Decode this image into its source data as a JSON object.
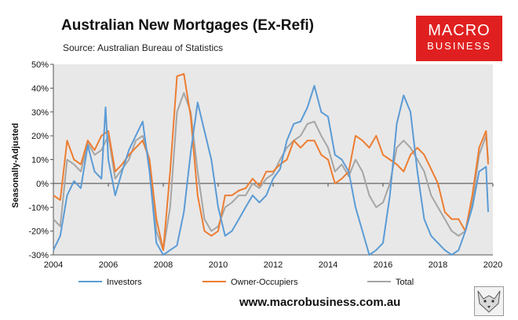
{
  "title": "Australian New Mortgages (Ex-Refi)",
  "subtitle": "Source: Australian Bureau of Statistics",
  "logo": {
    "line1": "MACRO",
    "line2": "BUSINESS"
  },
  "website": "www.macrobusiness.com.au",
  "colors": {
    "investors": "#5b9bd5",
    "owner_occupiers": "#ed7d31",
    "total": "#a5a5a5",
    "logo_bg": "#e02020",
    "plot_bg": "#e8e8e8"
  },
  "chart_data": {
    "type": "line",
    "xlabel": "",
    "ylabel": "Seasonally-Adjusted",
    "xlim": [
      2004,
      2020
    ],
    "ylim": [
      -30,
      50
    ],
    "x_ticks": [
      "2004",
      "2006",
      "2008",
      "2010",
      "2012",
      "2014",
      "2016",
      "2018",
      "2020"
    ],
    "y_ticks": [
      "-30%",
      "-20%",
      "-10%",
      "0%",
      "10%",
      "20%",
      "30%",
      "40%",
      "50%"
    ],
    "grid": false,
    "legend": "bottom",
    "series": [
      {
        "name": "Investors",
        "x": [
          2004.0,
          2004.25,
          2004.5,
          2004.75,
          2005.0,
          2005.25,
          2005.5,
          2005.75,
          2005.9,
          2006.0,
          2006.25,
          2006.5,
          2006.75,
          2007.0,
          2007.25,
          2007.5,
          2007.75,
          2008.0,
          2008.25,
          2008.5,
          2008.75,
          2009.0,
          2009.25,
          2009.5,
          2009.75,
          2010.0,
          2010.25,
          2010.5,
          2010.75,
          2011.0,
          2011.25,
          2011.5,
          2011.75,
          2012.0,
          2012.25,
          2012.5,
          2012.75,
          2013.0,
          2013.25,
          2013.5,
          2013.75,
          2014.0,
          2014.25,
          2014.5,
          2014.75,
          2015.0,
          2015.25,
          2015.5,
          2015.75,
          2016.0,
          2016.25,
          2016.5,
          2016.75,
          2017.0,
          2017.25,
          2017.5,
          2017.75,
          2018.0,
          2018.25,
          2018.5,
          2018.75,
          2019.0,
          2019.25,
          2019.5,
          2019.75,
          2019.83
        ],
        "y": [
          -28,
          -22,
          -5,
          1,
          -2,
          16,
          5,
          2,
          32,
          10,
          -5,
          5,
          14,
          20,
          26,
          5,
          -25,
          -30,
          -28,
          -26,
          -12,
          13,
          34,
          22,
          10,
          -10,
          -22,
          -20,
          -15,
          -10,
          -5,
          -8,
          -5,
          2,
          6,
          18,
          25,
          26,
          32,
          41,
          30,
          28,
          12,
          10,
          5,
          -10,
          -20,
          -30,
          -28,
          -25,
          -5,
          25,
          37,
          30,
          5,
          -15,
          -22,
          -25,
          -28,
          -30,
          -28,
          -20,
          -10,
          5,
          7,
          -12
        ]
      },
      {
        "name": "Owner-Occupiers",
        "x": [
          2004.0,
          2004.25,
          2004.5,
          2004.75,
          2005.0,
          2005.25,
          2005.5,
          2005.75,
          2006.0,
          2006.25,
          2006.5,
          2006.75,
          2007.0,
          2007.25,
          2007.5,
          2007.75,
          2008.0,
          2008.25,
          2008.5,
          2008.75,
          2009.0,
          2009.25,
          2009.5,
          2009.75,
          2010.0,
          2010.25,
          2010.5,
          2010.75,
          2011.0,
          2011.25,
          2011.5,
          2011.75,
          2012.0,
          2012.25,
          2012.5,
          2012.75,
          2013.0,
          2013.25,
          2013.5,
          2013.75,
          2014.0,
          2014.25,
          2014.5,
          2014.75,
          2015.0,
          2015.25,
          2015.5,
          2015.75,
          2016.0,
          2016.25,
          2016.5,
          2016.75,
          2017.0,
          2017.25,
          2017.5,
          2017.75,
          2018.0,
          2018.25,
          2018.5,
          2018.75,
          2019.0,
          2019.25,
          2019.5,
          2019.75,
          2019.83
        ],
        "y": [
          -5,
          -7,
          18,
          10,
          8,
          18,
          14,
          20,
          22,
          5,
          8,
          12,
          15,
          18,
          10,
          -15,
          -28,
          5,
          45,
          46,
          28,
          -5,
          -20,
          -22,
          -20,
          -5,
          -5,
          -3,
          -2,
          2,
          -1,
          5,
          5,
          8,
          10,
          18,
          15,
          18,
          18,
          12,
          10,
          0,
          2,
          5,
          20,
          18,
          15,
          20,
          12,
          10,
          8,
          5,
          12,
          15,
          12,
          6,
          0,
          -12,
          -15,
          -15,
          -20,
          -5,
          15,
          22,
          8
        ]
      },
      {
        "name": "Total",
        "x": [
          2004.0,
          2004.25,
          2004.5,
          2004.75,
          2005.0,
          2005.25,
          2005.5,
          2005.75,
          2006.0,
          2006.25,
          2006.5,
          2006.75,
          2007.0,
          2007.25,
          2007.5,
          2007.75,
          2008.0,
          2008.25,
          2008.5,
          2008.75,
          2009.0,
          2009.25,
          2009.5,
          2009.75,
          2010.0,
          2010.25,
          2010.5,
          2010.75,
          2011.0,
          2011.25,
          2011.5,
          2011.75,
          2012.0,
          2012.25,
          2012.5,
          2012.75,
          2013.0,
          2013.25,
          2013.5,
          2013.75,
          2014.0,
          2014.25,
          2014.5,
          2014.75,
          2015.0,
          2015.25,
          2015.5,
          2015.75,
          2016.0,
          2016.25,
          2016.5,
          2016.75,
          2017.0,
          2017.25,
          2017.5,
          2017.75,
          2018.0,
          2018.25,
          2018.5,
          2018.75,
          2019.0,
          2019.25,
          2019.5,
          2019.75,
          2019.83
        ],
        "y": [
          -15,
          -18,
          10,
          8,
          5,
          17,
          12,
          14,
          20,
          2,
          6,
          10,
          18,
          20,
          10,
          -20,
          -28,
          -10,
          30,
          38,
          30,
          5,
          -15,
          -20,
          -18,
          -10,
          -8,
          -5,
          -5,
          0,
          -2,
          2,
          4,
          10,
          15,
          18,
          20,
          25,
          26,
          20,
          15,
          5,
          8,
          3,
          10,
          5,
          -5,
          -10,
          -8,
          0,
          15,
          18,
          15,
          10,
          5,
          -5,
          -10,
          -15,
          -20,
          -22,
          -20,
          -8,
          12,
          20,
          10
        ]
      }
    ]
  }
}
